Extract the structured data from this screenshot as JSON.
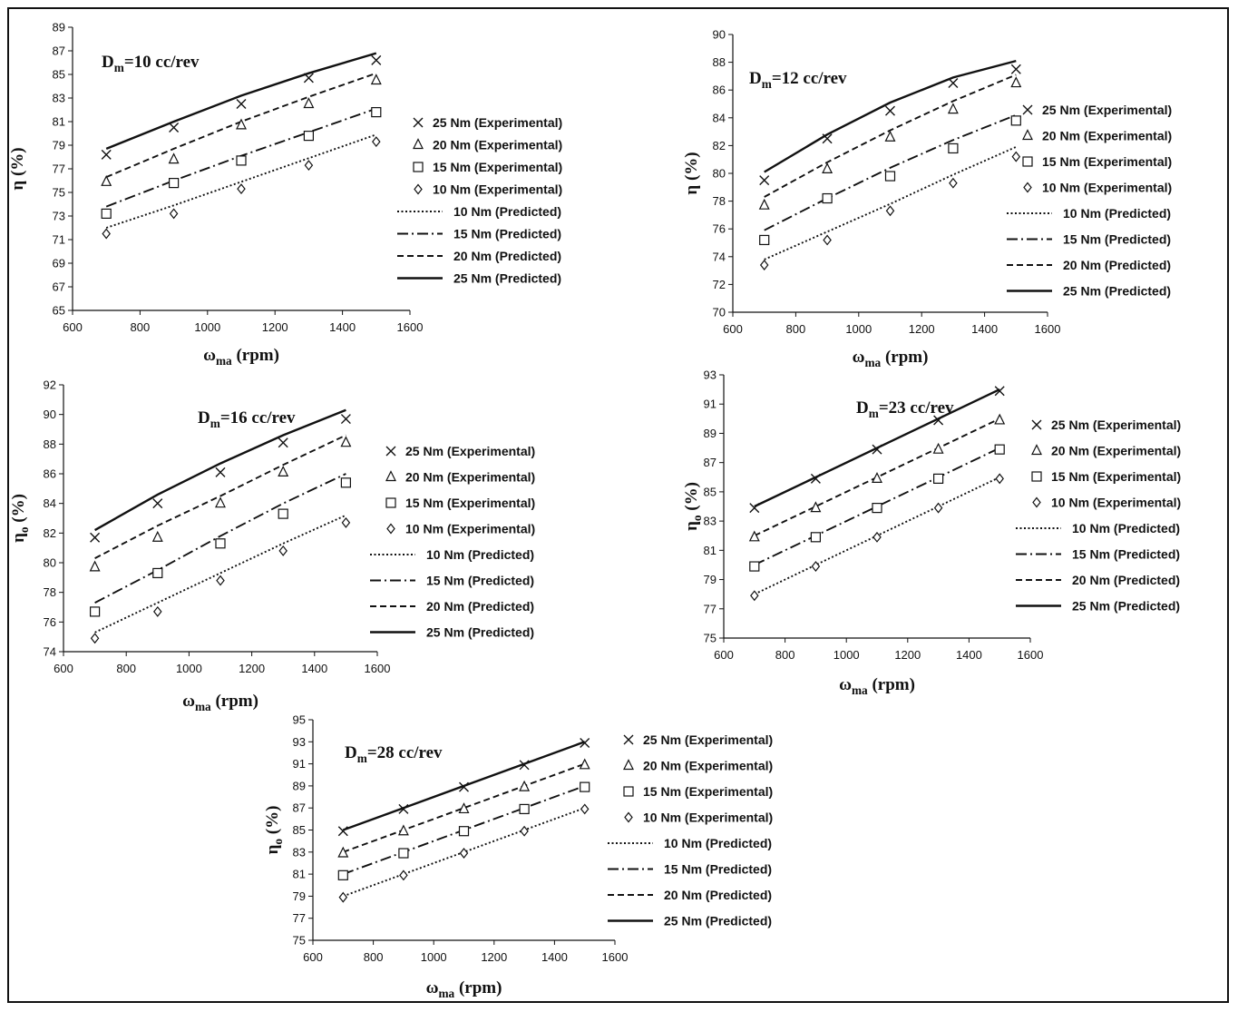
{
  "chart_data": [
    {
      "type": "line",
      "title_main": "D",
      "title_sub": "m",
      "title_rest": "=10 cc/rev",
      "ylabel_main": "η",
      "ylabel_sub": "",
      "ylabel_rest": " (%)",
      "xlabel_main": "ω",
      "xlabel_sub": "ma",
      "xlabel_rest": " (rpm)",
      "xlim": [
        600,
        1600
      ],
      "xticks": [
        600,
        800,
        1000,
        1200,
        1400,
        1600
      ],
      "ylim": [
        65,
        89
      ],
      "yticks": [
        65,
        67,
        69,
        71,
        73,
        75,
        77,
        79,
        81,
        83,
        85,
        87,
        89
      ],
      "x": [
        700,
        900,
        1100,
        1300,
        1500
      ],
      "series": [
        {
          "name": "25 Nm (Experimental)",
          "kind": "marker",
          "marker": "x",
          "values": [
            78.2,
            80.5,
            82.5,
            84.7,
            86.2
          ]
        },
        {
          "name": "20 Nm  (Experimental)",
          "kind": "marker",
          "marker": "triangle",
          "values": [
            75.9,
            77.8,
            80.7,
            82.5,
            84.5
          ]
        },
        {
          "name": "15 Nm  (Experimental)",
          "kind": "marker",
          "marker": "square",
          "values": [
            73.2,
            75.8,
            77.7,
            79.8,
            81.8
          ]
        },
        {
          "name": "10 Nm  (Experimental)",
          "kind": "marker",
          "marker": "diamond",
          "values": [
            71.5,
            73.2,
            75.3,
            77.3,
            79.3
          ]
        },
        {
          "name": "10 Nm (Predicted)",
          "kind": "line",
          "dash": "dotted",
          "values": [
            72.0,
            73.9,
            75.9,
            77.9,
            79.9
          ]
        },
        {
          "name": "15 Nm (Predicted)",
          "kind": "line",
          "dash": "dashdot",
          "values": [
            73.8,
            76.0,
            78.1,
            80.1,
            82.1
          ]
        },
        {
          "name": "20 Nm (Predicted)",
          "kind": "line",
          "dash": "dashed",
          "values": [
            76.3,
            78.7,
            81.0,
            83.1,
            85.1
          ]
        },
        {
          "name": "25 Nm (Predicted)",
          "kind": "line",
          "dash": "solid",
          "values": [
            78.7,
            81.0,
            83.2,
            85.1,
            86.8
          ]
        }
      ]
    },
    {
      "type": "line",
      "title_main": "D",
      "title_sub": "m",
      "title_rest": "=12 cc/rev",
      "ylabel_main": "η",
      "ylabel_sub": "",
      "ylabel_rest": " (%)",
      "xlabel_main": "ω",
      "xlabel_sub": "ma",
      "xlabel_rest": " (rpm)",
      "xlim": [
        600,
        1600
      ],
      "xticks": [
        600,
        800,
        1000,
        1200,
        1400,
        1600
      ],
      "ylim": [
        70,
        90
      ],
      "yticks": [
        70,
        72,
        74,
        76,
        78,
        80,
        82,
        84,
        86,
        88,
        90
      ],
      "x": [
        700,
        900,
        1100,
        1300,
        1500
      ],
      "series": [
        {
          "name": "25 Nm (Experimental)",
          "kind": "marker",
          "marker": "x",
          "values": [
            79.5,
            82.5,
            84.5,
            86.5,
            87.5
          ]
        },
        {
          "name": "20 Nm  (Experimental)",
          "kind": "marker",
          "marker": "triangle",
          "values": [
            77.7,
            80.3,
            82.6,
            84.6,
            86.5
          ]
        },
        {
          "name": "15 Nm  (Experimental)",
          "kind": "marker",
          "marker": "square",
          "values": [
            75.2,
            78.2,
            79.8,
            81.8,
            83.8
          ]
        },
        {
          "name": "10 Nm  (Experimental)",
          "kind": "marker",
          "marker": "diamond",
          "values": [
            73.4,
            75.2,
            77.3,
            79.3,
            81.2
          ]
        },
        {
          "name": "10 Nm (Predicted)",
          "kind": "line",
          "dash": "dotted",
          "values": [
            73.8,
            75.8,
            77.8,
            79.9,
            81.9
          ]
        },
        {
          "name": "15 Nm (Predicted)",
          "kind": "line",
          "dash": "dashdot",
          "values": [
            75.9,
            78.2,
            80.4,
            82.4,
            84.2
          ]
        },
        {
          "name": "20 Nm (Predicted)",
          "kind": "line",
          "dash": "dashed",
          "values": [
            78.3,
            80.8,
            83.1,
            85.2,
            87.1
          ]
        },
        {
          "name": "25 Nm (Predicted)",
          "kind": "line",
          "dash": "solid",
          "values": [
            80.1,
            82.8,
            85.1,
            86.9,
            88.1
          ]
        }
      ]
    },
    {
      "type": "line",
      "title_main": "D",
      "title_sub": "m",
      "title_rest": "=16 cc/rev",
      "ylabel_main": "η",
      "ylabel_sub": "o",
      "ylabel_rest": " (%)",
      "xlabel_main": "ω",
      "xlabel_sub": "ma",
      "xlabel_rest": " (rpm)",
      "xlim": [
        600,
        1600
      ],
      "xticks": [
        600,
        800,
        1000,
        1200,
        1400,
        1600
      ],
      "ylim": [
        74,
        92
      ],
      "yticks": [
        74,
        76,
        78,
        80,
        82,
        84,
        86,
        88,
        90,
        92
      ],
      "x": [
        700,
        900,
        1100,
        1300,
        1500
      ],
      "series": [
        {
          "name": "25 Nm (Experimental)",
          "kind": "marker",
          "marker": "x",
          "values": [
            81.7,
            84.0,
            86.1,
            88.1,
            89.7
          ]
        },
        {
          "name": "20 Nm (Experimental)",
          "kind": "marker",
          "marker": "triangle",
          "values": [
            79.7,
            81.7,
            84.0,
            86.1,
            88.1
          ]
        },
        {
          "name": "15 Nm (Experimental)",
          "kind": "marker",
          "marker": "square",
          "values": [
            76.7,
            79.3,
            81.3,
            83.3,
            85.4
          ]
        },
        {
          "name": "10 Nm (Experimental)",
          "kind": "marker",
          "marker": "diamond",
          "values": [
            74.9,
            76.7,
            78.8,
            80.8,
            82.7
          ]
        },
        {
          "name": "10 Nm (Predicted)",
          "kind": "line",
          "dash": "dotted",
          "values": [
            75.3,
            77.3,
            79.3,
            81.3,
            83.2
          ]
        },
        {
          "name": "15 Nm (Predicted)",
          "kind": "line",
          "dash": "dashdot",
          "values": [
            77.3,
            79.5,
            81.8,
            84.0,
            86.0
          ]
        },
        {
          "name": "20 Nm (Predicted)",
          "kind": "line",
          "dash": "dashed",
          "values": [
            80.3,
            82.5,
            84.5,
            86.6,
            88.6
          ]
        },
        {
          "name": "25 Nm (Predicted)",
          "kind": "line",
          "dash": "solid",
          "values": [
            82.2,
            84.6,
            86.7,
            88.6,
            90.3
          ]
        }
      ]
    },
    {
      "type": "line",
      "title_main": "D",
      "title_sub": "m",
      "title_rest": "=23 cc/rev",
      "ylabel_main": "η",
      "ylabel_sub": "o",
      "ylabel_rest": " (%)",
      "xlabel_main": "ω",
      "xlabel_sub": "ma",
      "xlabel_rest": " (rpm)",
      "xlim": [
        600,
        1600
      ],
      "xticks": [
        600,
        800,
        1000,
        1200,
        1400,
        1600
      ],
      "ylim": [
        75,
        93
      ],
      "yticks": [
        75,
        77,
        79,
        81,
        83,
        85,
        87,
        89,
        91,
        93
      ],
      "x": [
        700,
        900,
        1100,
        1300,
        1500
      ],
      "series": [
        {
          "name": "25 Nm (Experimental)",
          "kind": "marker",
          "marker": "x",
          "values": [
            83.9,
            85.9,
            87.9,
            89.9,
            91.9
          ]
        },
        {
          "name": "20 Nm (Experimental)",
          "kind": "marker",
          "marker": "triangle",
          "values": [
            81.9,
            83.9,
            85.9,
            87.9,
            89.9
          ]
        },
        {
          "name": "15 Nm (Experimental)",
          "kind": "marker",
          "marker": "square",
          "values": [
            79.9,
            81.9,
            83.9,
            85.9,
            87.9
          ]
        },
        {
          "name": "10 Nm (Experimental)",
          "kind": "marker",
          "marker": "diamond",
          "values": [
            77.9,
            79.9,
            81.9,
            83.9,
            85.9
          ]
        },
        {
          "name": "10 Nm (Predicted)",
          "kind": "line",
          "dash": "dotted",
          "values": [
            78.0,
            80.0,
            82.0,
            84.0,
            86.0
          ]
        },
        {
          "name": "15 Nm (Predicted)",
          "kind": "line",
          "dash": "dashdot",
          "values": [
            80.0,
            82.0,
            84.0,
            86.0,
            88.0
          ]
        },
        {
          "name": "20 Nm (Predicted)",
          "kind": "line",
          "dash": "dashed",
          "values": [
            82.0,
            84.0,
            86.0,
            88.0,
            90.0
          ]
        },
        {
          "name": "25 Nm (Predicted)",
          "kind": "line",
          "dash": "solid",
          "values": [
            84.0,
            86.0,
            88.0,
            90.0,
            92.0
          ]
        }
      ]
    },
    {
      "type": "line",
      "title_main": "D",
      "title_sub": "m",
      "title_rest": "=28 cc/rev",
      "ylabel_main": "η",
      "ylabel_sub": "o",
      "ylabel_rest": " (%)",
      "xlabel_main": "ω",
      "xlabel_sub": "ma",
      "xlabel_rest": " (rpm)",
      "xlim": [
        600,
        1600
      ],
      "xticks": [
        600,
        800,
        1000,
        1200,
        1400,
        1600
      ],
      "ylim": [
        75,
        95
      ],
      "yticks": [
        75,
        77,
        79,
        81,
        83,
        85,
        87,
        89,
        91,
        93,
        95
      ],
      "x": [
        700,
        900,
        1100,
        1300,
        1500
      ],
      "series": [
        {
          "name": "25 Nm (Experimental)",
          "kind": "marker",
          "marker": "x",
          "values": [
            84.9,
            86.9,
            88.9,
            90.9,
            92.9
          ]
        },
        {
          "name": "20 Nm (Experimental)",
          "kind": "marker",
          "marker": "triangle",
          "values": [
            82.9,
            84.9,
            86.9,
            88.9,
            90.9
          ]
        },
        {
          "name": "15 Nm (Experimental)",
          "kind": "marker",
          "marker": "square",
          "values": [
            80.9,
            82.9,
            84.9,
            86.9,
            88.9
          ]
        },
        {
          "name": "10 Nm (Experimental)",
          "kind": "marker",
          "marker": "diamond",
          "values": [
            78.9,
            80.9,
            82.9,
            84.9,
            86.9
          ]
        },
        {
          "name": "10 Nm (Predicted)",
          "kind": "line",
          "dash": "dotted",
          "values": [
            79.0,
            81.0,
            83.0,
            85.0,
            87.0
          ]
        },
        {
          "name": "15 Nm (Predicted)",
          "kind": "line",
          "dash": "dashdot",
          "values": [
            81.0,
            83.0,
            85.0,
            87.0,
            89.0
          ]
        },
        {
          "name": "20 Nm (Predicted)",
          "kind": "line",
          "dash": "dashed",
          "values": [
            83.0,
            85.0,
            87.0,
            89.0,
            91.0
          ]
        },
        {
          "name": "25 Nm (Predicted)",
          "kind": "line",
          "dash": "solid",
          "values": [
            85.0,
            87.0,
            89.0,
            91.0,
            93.0
          ]
        }
      ]
    }
  ]
}
